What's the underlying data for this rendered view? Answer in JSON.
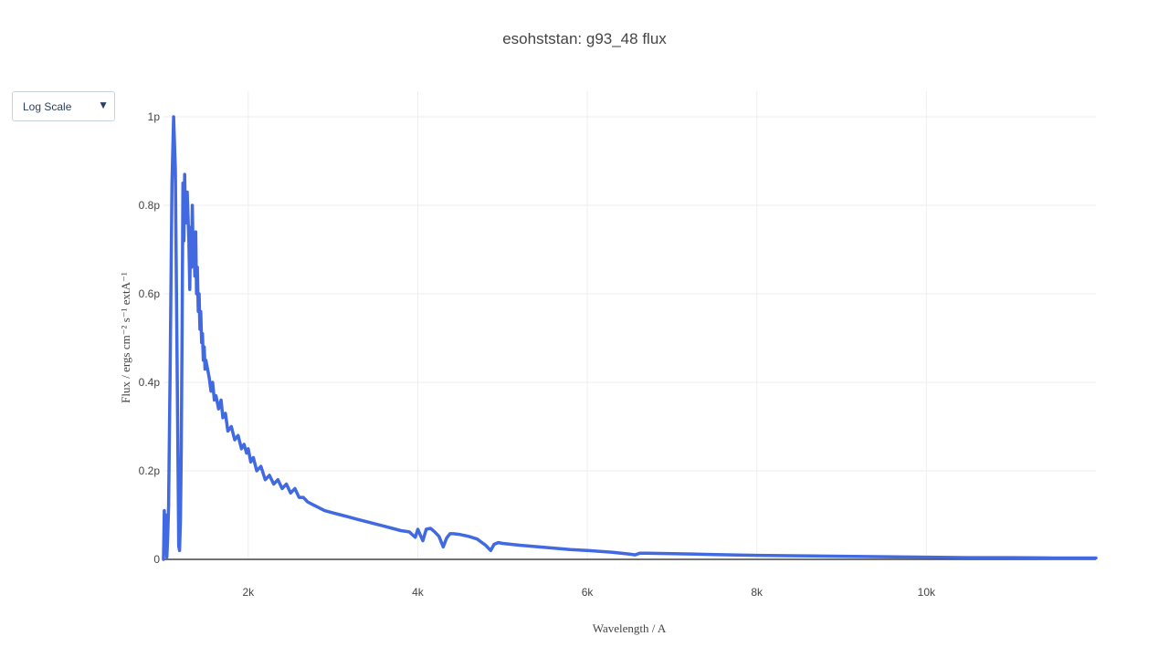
{
  "colors": {
    "line": "#4169e1",
    "grid": "#eeeeee",
    "zeroline": "#444444",
    "text": "#444444"
  },
  "controls": {
    "dropdown_label": "Log Scale",
    "dropdown_arrow_icon": "triangle-down-icon"
  },
  "chart_data": {
    "type": "line",
    "title": "esohststan: g93_48 flux",
    "xlabel": "Wavelength / A",
    "ylabel": "Flux / ergs cm⁻² s⁻¹ extA⁻¹",
    "xlim": [
      1000,
      12000
    ],
    "ylim": [
      0,
      1.0
    ],
    "y_unit_suffix": "p",
    "grid": true,
    "legend": "none",
    "xticks": [
      {
        "value": 2000,
        "label": "2k"
      },
      {
        "value": 4000,
        "label": "4k"
      },
      {
        "value": 6000,
        "label": "6k"
      },
      {
        "value": 8000,
        "label": "8k"
      },
      {
        "value": 10000,
        "label": "10k"
      }
    ],
    "yticks": [
      {
        "value": 0,
        "label": "0"
      },
      {
        "value": 0.2,
        "label": "0.2p"
      },
      {
        "value": 0.4,
        "label": "0.4p"
      },
      {
        "value": 0.6,
        "label": "0.6p"
      },
      {
        "value": 0.8,
        "label": "0.8p"
      },
      {
        "value": 1.0,
        "label": "1p"
      }
    ],
    "series": [
      {
        "x": [
          1000,
          1010,
          1020,
          1030,
          1040,
          1050,
          1060,
          1080,
          1100,
          1120,
          1140,
          1160,
          1180,
          1190,
          1200,
          1210,
          1220,
          1230,
          1240,
          1250,
          1260,
          1280,
          1300,
          1310,
          1320,
          1330,
          1340,
          1350,
          1360,
          1370,
          1380,
          1390,
          1400,
          1410,
          1420,
          1430,
          1440,
          1450,
          1460,
          1470,
          1480,
          1490,
          1500,
          1520,
          1540,
          1560,
          1580,
          1600,
          1620,
          1650,
          1680,
          1700,
          1730,
          1760,
          1800,
          1840,
          1880,
          1920,
          1950,
          1980,
          2000,
          2030,
          2060,
          2100,
          2150,
          2200,
          2250,
          2300,
          2350,
          2400,
          2450,
          2500,
          2550,
          2600,
          2650,
          2700,
          2750,
          2800,
          2900,
          3000,
          3100,
          3200,
          3300,
          3400,
          3500,
          3600,
          3700,
          3800,
          3900,
          3970,
          4000,
          4030,
          4060,
          4100,
          4150,
          4200,
          4250,
          4300,
          4340,
          4380,
          4420,
          4500,
          4600,
          4700,
          4800,
          4860,
          4900,
          4950,
          5000,
          5200,
          5500,
          5800,
          6000,
          6300,
          6500,
          6563,
          6620,
          6700,
          7000,
          7500,
          8000,
          8500,
          9000,
          9500,
          10000,
          10500,
          11000,
          11500,
          12000
        ],
        "y": [
          0.0,
          0.11,
          0.02,
          0.1,
          0.005,
          0.05,
          0.12,
          0.45,
          0.85,
          1.0,
          0.88,
          0.45,
          0.03,
          0.02,
          0.09,
          0.25,
          0.52,
          0.85,
          0.72,
          0.87,
          0.76,
          0.83,
          0.72,
          0.61,
          0.75,
          0.66,
          0.8,
          0.68,
          0.73,
          0.64,
          0.74,
          0.6,
          0.66,
          0.56,
          0.6,
          0.52,
          0.56,
          0.49,
          0.51,
          0.45,
          0.48,
          0.43,
          0.45,
          0.43,
          0.41,
          0.38,
          0.4,
          0.36,
          0.37,
          0.34,
          0.36,
          0.32,
          0.33,
          0.29,
          0.3,
          0.27,
          0.28,
          0.25,
          0.26,
          0.24,
          0.25,
          0.22,
          0.23,
          0.2,
          0.21,
          0.18,
          0.19,
          0.17,
          0.18,
          0.16,
          0.17,
          0.15,
          0.16,
          0.14,
          0.14,
          0.13,
          0.125,
          0.12,
          0.11,
          0.105,
          0.1,
          0.095,
          0.09,
          0.085,
          0.08,
          0.075,
          0.07,
          0.065,
          0.062,
          0.05,
          0.068,
          0.055,
          0.042,
          0.068,
          0.07,
          0.062,
          0.052,
          0.028,
          0.048,
          0.058,
          0.058,
          0.056,
          0.052,
          0.046,
          0.032,
          0.02,
          0.034,
          0.038,
          0.036,
          0.032,
          0.027,
          0.022,
          0.02,
          0.016,
          0.012,
          0.01,
          0.014,
          0.014,
          0.013,
          0.011,
          0.009,
          0.008,
          0.007,
          0.006,
          0.005,
          0.004,
          0.004,
          0.003,
          0.003
        ]
      }
    ]
  }
}
